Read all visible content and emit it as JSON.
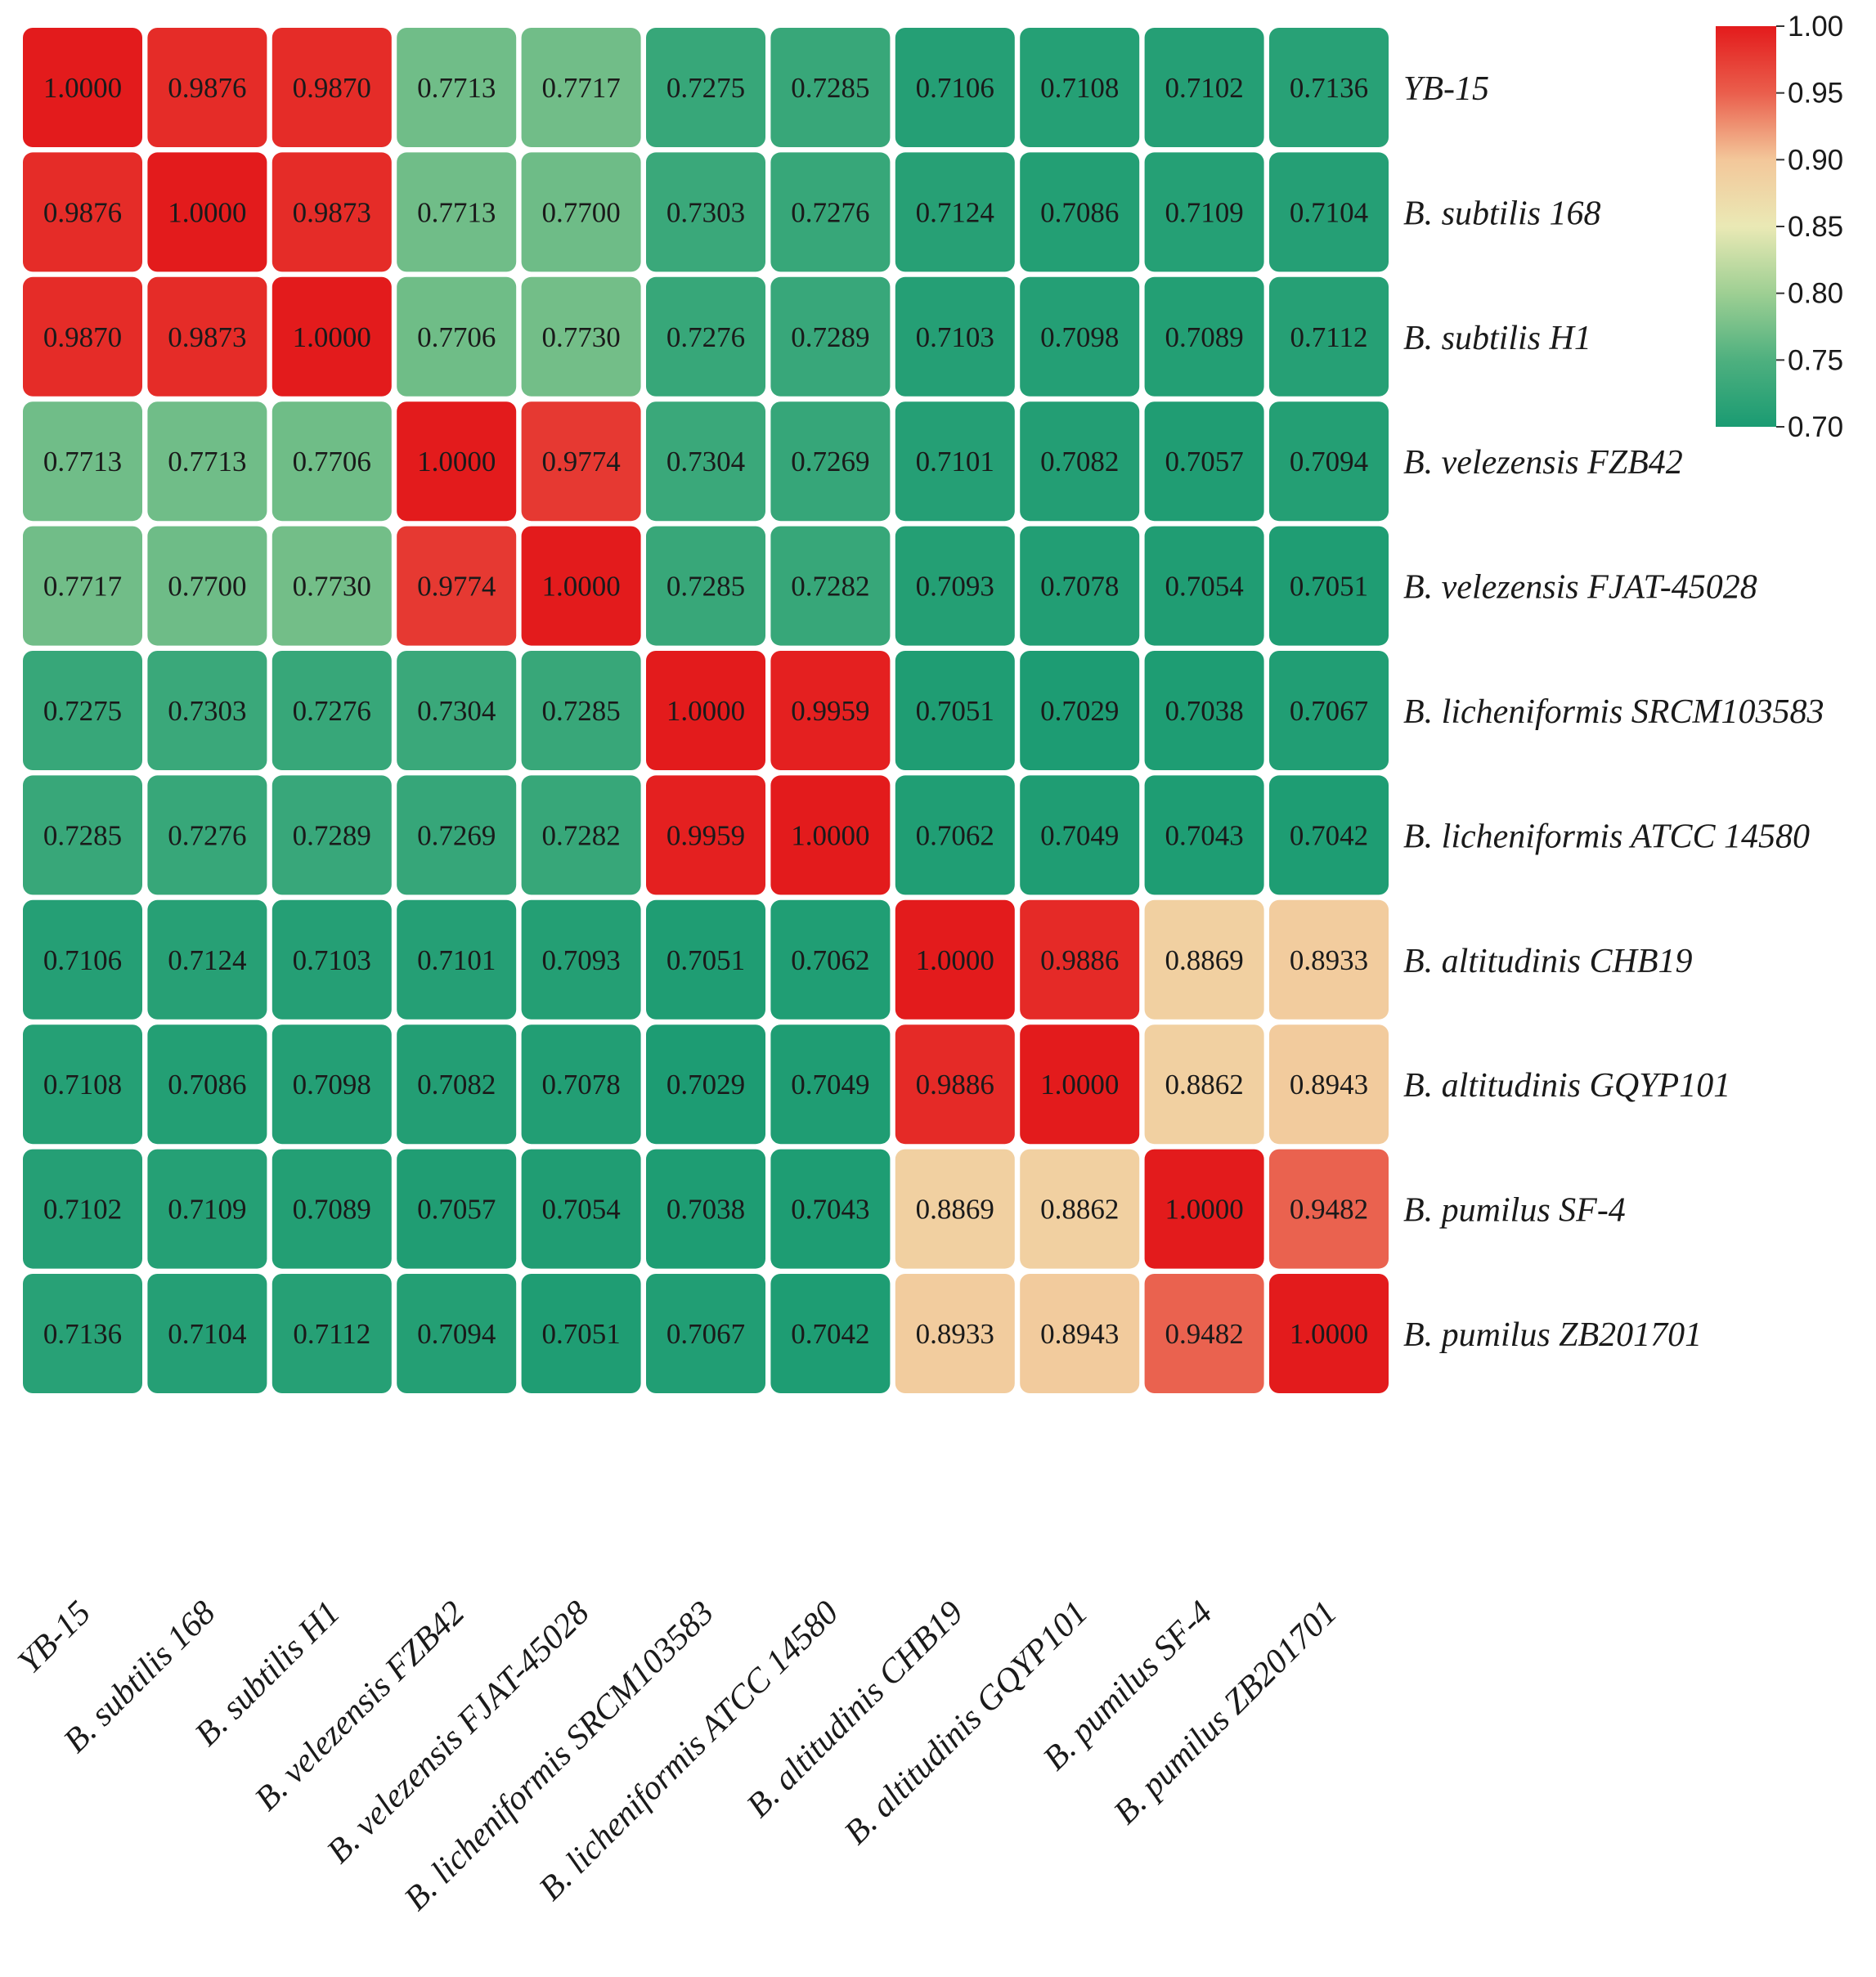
{
  "chart_data": {
    "type": "heatmap",
    "title": "",
    "xlabel": "",
    "ylabel": "",
    "rows": [
      "YB-15",
      "B. subtilis 168",
      "B. subtilis H1",
      "B. velezensis FZB42",
      "B. velezensis FJAT-45028",
      "B. licheniformis SRCM103583",
      "B. licheniformis ATCC 14580",
      "B. altitudinis CHB19",
      "B. altitudinis GQYP101",
      "B. pumilus SF-4",
      "B. pumilus ZB201701"
    ],
    "columns": [
      "YB-15",
      "B. subtilis 168",
      "B. subtilis H1",
      "B. velezensis FZB42",
      "B. velezensis FJAT-45028",
      "B. licheniformis SRCM103583",
      "B. licheniformis ATCC 14580",
      "B. altitudinis CHB19",
      "B. altitudinis GQYP101",
      "B. pumilus SF-4",
      "B. pumilus ZB201701"
    ],
    "values": [
      [
        1.0,
        0.9876,
        0.987,
        0.7713,
        0.7717,
        0.7275,
        0.7285,
        0.7106,
        0.7108,
        0.7102,
        0.7136
      ],
      [
        0.9876,
        1.0,
        0.9873,
        0.7713,
        0.77,
        0.7303,
        0.7276,
        0.7124,
        0.7086,
        0.7109,
        0.7104
      ],
      [
        0.987,
        0.9873,
        1.0,
        0.7706,
        0.773,
        0.7276,
        0.7289,
        0.7103,
        0.7098,
        0.7089,
        0.7112
      ],
      [
        0.7713,
        0.7713,
        0.7706,
        1.0,
        0.9774,
        0.7304,
        0.7269,
        0.7101,
        0.7082,
        0.7057,
        0.7094
      ],
      [
        0.7717,
        0.77,
        0.773,
        0.9774,
        1.0,
        0.7285,
        0.7282,
        0.7093,
        0.7078,
        0.7054,
        0.7051
      ],
      [
        0.7275,
        0.7303,
        0.7276,
        0.7304,
        0.7285,
        1.0,
        0.9959,
        0.7051,
        0.7029,
        0.7038,
        0.7067
      ],
      [
        0.7285,
        0.7276,
        0.7289,
        0.7269,
        0.7282,
        0.9959,
        1.0,
        0.7062,
        0.7049,
        0.7043,
        0.7042
      ],
      [
        0.7106,
        0.7124,
        0.7103,
        0.7101,
        0.7093,
        0.7051,
        0.7062,
        1.0,
        0.9886,
        0.8869,
        0.8933
      ],
      [
        0.7108,
        0.7086,
        0.7098,
        0.7082,
        0.7078,
        0.7029,
        0.7049,
        0.9886,
        1.0,
        0.8862,
        0.8943
      ],
      [
        0.7102,
        0.7109,
        0.7089,
        0.7057,
        0.7054,
        0.7038,
        0.7043,
        0.8869,
        0.8862,
        1.0,
        0.9482
      ],
      [
        0.7136,
        0.7104,
        0.7112,
        0.7094,
        0.7051,
        0.7067,
        0.7042,
        0.8933,
        0.8943,
        0.9482,
        1.0
      ]
    ],
    "value_format_decimals": 4,
    "colorbar": {
      "range": [
        0.7,
        1.0
      ],
      "ticks": [
        "1.00",
        "0.95",
        "0.90",
        "0.85",
        "0.80",
        "0.75",
        "0.70"
      ],
      "placement": "top-right",
      "stops": [
        {
          "value": 0.7,
          "color": "#1a9b72"
        },
        {
          "value": 0.75,
          "color": "#4eb07f"
        },
        {
          "value": 0.8,
          "color": "#9ecf93"
        },
        {
          "value": 0.85,
          "color": "#eae9b5"
        },
        {
          "value": 0.9,
          "color": "#f3c79a"
        },
        {
          "value": 0.95,
          "color": "#ea5e4c"
        },
        {
          "value": 1.0,
          "color": "#e31b1c"
        }
      ]
    },
    "row_labels_position": "right",
    "column_labels_position": "bottom-rotated"
  }
}
